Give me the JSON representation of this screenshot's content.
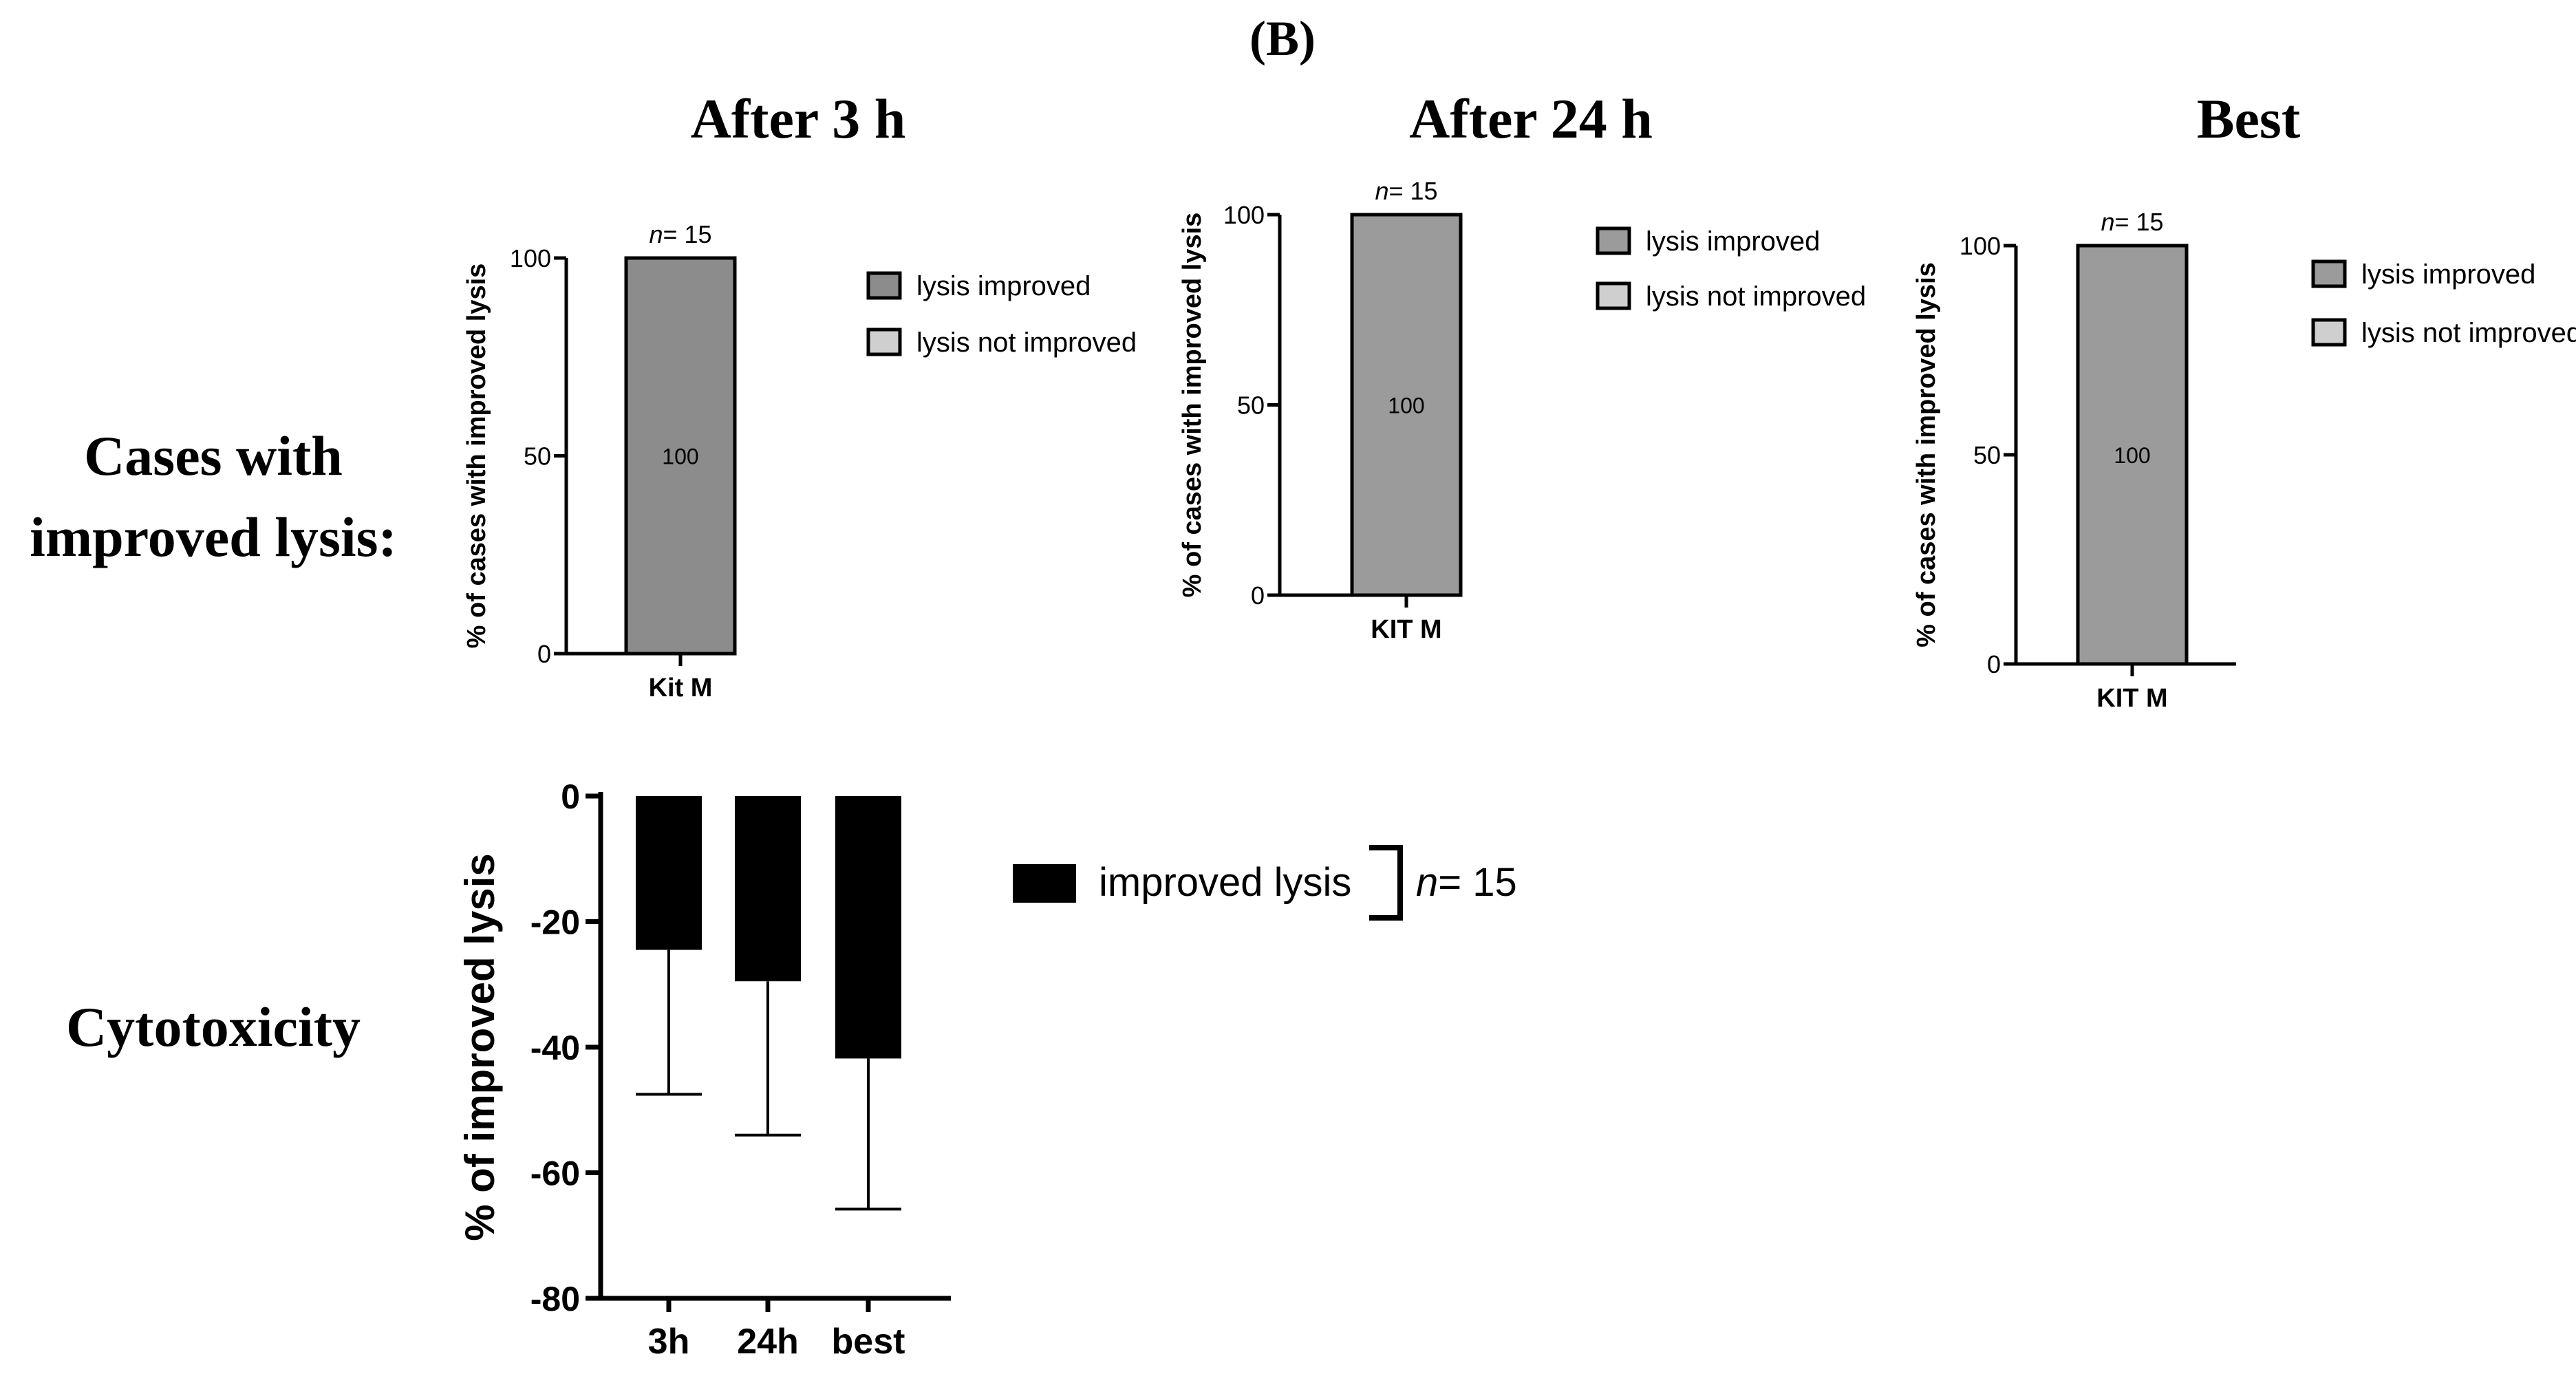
{
  "figure": {
    "panel_label": "(B)",
    "row_labels": {
      "cases": [
        "Cases with",
        "improved lysis:"
      ],
      "cytotoxicity": "Cytotoxicity"
    },
    "column_titles": [
      "After 3 h",
      "After 24 h",
      "Best"
    ]
  },
  "chart_data": [
    {
      "id": "after3h",
      "type": "bar",
      "title": "After 3 h",
      "categories": [
        "Kit M"
      ],
      "series": [
        {
          "name": "lysis improved",
          "values": [
            100
          ],
          "color": "#8c8c8c"
        },
        {
          "name": "lysis not improved",
          "values": [
            0
          ],
          "color": "#cfcfcf"
        }
      ],
      "data_labels": [
        "100"
      ],
      "n_prefix": "n",
      "n_value": "= 15",
      "ylabel": "% of cases with improved lysis",
      "ylim": [
        0,
        100
      ],
      "yticks": [
        0,
        50,
        100
      ],
      "legend": [
        "lysis improved",
        "lysis not improved"
      ],
      "legend_position": "right"
    },
    {
      "id": "after24h",
      "type": "bar",
      "title": "After 24 h",
      "categories": [
        "KIT M"
      ],
      "series": [
        {
          "name": "lysis improved",
          "values": [
            100
          ],
          "color": "#9b9b9b"
        },
        {
          "name": "lysis not improved",
          "values": [
            0
          ],
          "color": "#cfcfcf"
        }
      ],
      "data_labels": [
        "100"
      ],
      "n_prefix": "n",
      "n_value": "= 15",
      "ylabel": "% of cases with improved lysis",
      "ylim": [
        0,
        100
      ],
      "yticks": [
        0,
        50,
        100
      ],
      "legend": [
        "lysis improved",
        "lysis not improved"
      ],
      "legend_position": "right"
    },
    {
      "id": "best",
      "type": "bar",
      "title": "Best",
      "categories": [
        "KIT M"
      ],
      "series": [
        {
          "name": "lysis improved",
          "values": [
            100
          ],
          "color": "#9b9b9b"
        },
        {
          "name": "lysis not improved",
          "values": [
            0
          ],
          "color": "#cfcfcf"
        }
      ],
      "data_labels": [
        "100"
      ],
      "n_prefix": "n",
      "n_value": "= 15",
      "ylabel": "% of cases with improved lysis",
      "ylim": [
        0,
        100
      ],
      "yticks": [
        0,
        50,
        100
      ],
      "legend": [
        "lysis improved",
        "lysis not improved"
      ],
      "legend_position": "right"
    },
    {
      "id": "cytotoxicity",
      "type": "bar",
      "title": "Cytotoxicity",
      "categories": [
        "3h",
        "24h",
        "best"
      ],
      "series": [
        {
          "name": "improved lysis",
          "values": [
            -24.5,
            -29.5,
            -41.8
          ],
          "errors": [
            23,
            24.5,
            24
          ],
          "color": "#000000"
        }
      ],
      "ylabel": "% of improved lysis",
      "ylim": [
        -80,
        0
      ],
      "yticks": [
        0,
        -20,
        -40,
        -60,
        -80
      ],
      "legend": [
        "improved lysis"
      ],
      "n_prefix": "n",
      "n_value": "= 15",
      "legend_position": "right"
    }
  ]
}
